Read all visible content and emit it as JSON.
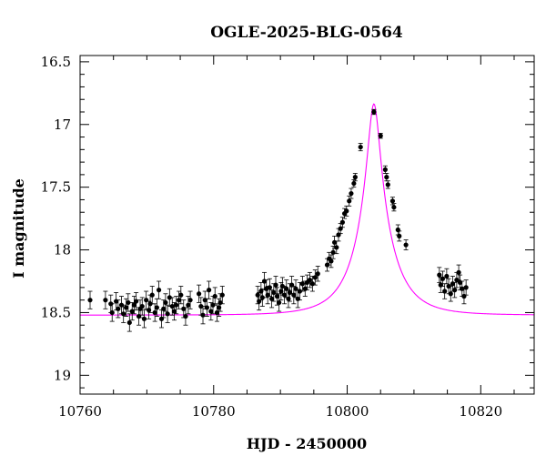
{
  "chart_data": {
    "type": "scatter",
    "title": "OGLE-2025-BLG-0564",
    "xlabel": "HJD - 2450000",
    "ylabel": "I magnitude",
    "xlim": [
      10760,
      10828
    ],
    "ylim": [
      16.45,
      19.15
    ],
    "y_inverted": true,
    "x_ticks": [
      10760,
      10780,
      10800,
      10820
    ],
    "y_ticks": [
      16.5,
      17,
      17.5,
      18,
      18.5,
      19
    ],
    "x_tick_labels": [
      "10760",
      "10780",
      "10800",
      "10820"
    ],
    "y_tick_labels": [
      "16.5",
      "17",
      "17.5",
      "18",
      "18.5",
      "19"
    ],
    "grid": false,
    "colors": {
      "points": "#000000",
      "model": "#ff00ff",
      "axes": "#000000"
    },
    "series": [
      {
        "type": "scatter",
        "points": [
          [
            10761.5,
            18.4,
            0.07
          ],
          [
            10763.8,
            18.4,
            0.07
          ],
          [
            10764.6,
            18.43,
            0.07
          ],
          [
            10764.8,
            18.5,
            0.07
          ],
          [
            10765.4,
            18.41,
            0.07
          ],
          [
            10765.7,
            18.47,
            0.07
          ],
          [
            10766.2,
            18.44,
            0.07
          ],
          [
            10766.5,
            18.51,
            0.07
          ],
          [
            10766.9,
            18.46,
            0.07
          ],
          [
            10767.2,
            18.42,
            0.07
          ],
          [
            10767.4,
            18.58,
            0.07
          ],
          [
            10767.8,
            18.49,
            0.07
          ],
          [
            10768.1,
            18.44,
            0.07
          ],
          [
            10768.4,
            18.41,
            0.07
          ],
          [
            10768.8,
            18.53,
            0.07
          ],
          [
            10769.0,
            18.47,
            0.07
          ],
          [
            10769.3,
            18.45,
            0.07
          ],
          [
            10769.6,
            18.55,
            0.07
          ],
          [
            10769.9,
            18.4,
            0.07
          ],
          [
            10770.3,
            18.48,
            0.07
          ],
          [
            10770.5,
            18.43,
            0.07
          ],
          [
            10770.8,
            18.36,
            0.07
          ],
          [
            10771.2,
            18.5,
            0.07
          ],
          [
            10771.5,
            18.46,
            0.07
          ],
          [
            10771.8,
            18.32,
            0.07
          ],
          [
            10772.2,
            18.55,
            0.07
          ],
          [
            10772.5,
            18.47,
            0.07
          ],
          [
            10772.8,
            18.42,
            0.07
          ],
          [
            10773.1,
            18.51,
            0.07
          ],
          [
            10773.4,
            18.38,
            0.07
          ],
          [
            10773.8,
            18.45,
            0.07
          ],
          [
            10774.1,
            18.49,
            0.07
          ],
          [
            10774.4,
            18.44,
            0.07
          ],
          [
            10774.8,
            18.4,
            0.07
          ],
          [
            10775.1,
            18.36,
            0.07
          ],
          [
            10775.5,
            18.47,
            0.07
          ],
          [
            10775.8,
            18.53,
            0.07
          ],
          [
            10776.2,
            18.44,
            0.07
          ],
          [
            10776.5,
            18.4,
            0.07
          ],
          [
            10777.8,
            18.35,
            0.07
          ],
          [
            10778.1,
            18.45,
            0.07
          ],
          [
            10778.4,
            18.52,
            0.07
          ],
          [
            10778.7,
            18.4,
            0.07
          ],
          [
            10779.0,
            18.46,
            0.07
          ],
          [
            10779.3,
            18.32,
            0.07
          ],
          [
            10779.6,
            18.49,
            0.07
          ],
          [
            10779.9,
            18.44,
            0.07
          ],
          [
            10780.2,
            18.37,
            0.07
          ],
          [
            10780.5,
            18.5,
            0.07
          ],
          [
            10780.8,
            18.46,
            0.07
          ],
          [
            10781.0,
            18.42,
            0.07
          ],
          [
            10781.3,
            18.36,
            0.07
          ],
          [
            10786.6,
            18.36,
            0.07
          ],
          [
            10786.8,
            18.41,
            0.07
          ],
          [
            10787.1,
            18.33,
            0.07
          ],
          [
            10787.3,
            18.38,
            0.07
          ],
          [
            10787.6,
            18.25,
            0.07
          ],
          [
            10787.9,
            18.31,
            0.07
          ],
          [
            10788.1,
            18.36,
            0.07
          ],
          [
            10788.4,
            18.3,
            0.07
          ],
          [
            10788.7,
            18.39,
            0.07
          ],
          [
            10789.0,
            18.34,
            0.07
          ],
          [
            10789.3,
            18.28,
            0.07
          ],
          [
            10789.5,
            18.37,
            0.07
          ],
          [
            10789.8,
            18.42,
            0.07
          ],
          [
            10790.1,
            18.33,
            0.07
          ],
          [
            10790.3,
            18.29,
            0.07
          ],
          [
            10790.6,
            18.36,
            0.07
          ],
          [
            10790.9,
            18.31,
            0.07
          ],
          [
            10791.2,
            18.39,
            0.07
          ],
          [
            10791.4,
            18.34,
            0.07
          ],
          [
            10791.7,
            18.28,
            0.07
          ],
          [
            10792.0,
            18.36,
            0.07
          ],
          [
            10792.3,
            18.31,
            0.07
          ],
          [
            10792.6,
            18.39,
            0.07
          ],
          [
            10792.9,
            18.33,
            0.07
          ],
          [
            10793.3,
            18.27,
            0.06
          ],
          [
            10793.7,
            18.31,
            0.06
          ],
          [
            10794.0,
            18.26,
            0.06
          ],
          [
            10794.4,
            18.24,
            0.06
          ],
          [
            10794.8,
            18.27,
            0.06
          ],
          [
            10795.2,
            18.22,
            0.06
          ],
          [
            10795.6,
            18.19,
            0.06
          ],
          [
            10797.0,
            18.12,
            0.05
          ],
          [
            10797.3,
            18.07,
            0.05
          ],
          [
            10797.6,
            18.09,
            0.05
          ],
          [
            10797.9,
            18.02,
            0.05
          ],
          [
            10798.1,
            17.94,
            0.05
          ],
          [
            10798.4,
            17.98,
            0.05
          ],
          [
            10798.7,
            17.88,
            0.05
          ],
          [
            10799.0,
            17.83,
            0.04
          ],
          [
            10799.3,
            17.78,
            0.04
          ],
          [
            10799.6,
            17.71,
            0.04
          ],
          [
            10799.9,
            17.69,
            0.04
          ],
          [
            10800.3,
            17.61,
            0.04
          ],
          [
            10800.6,
            17.55,
            0.04
          ],
          [
            10801.0,
            17.47,
            0.03
          ],
          [
            10801.2,
            17.42,
            0.03
          ],
          [
            10802.0,
            17.18,
            0.03
          ],
          [
            10804.0,
            16.9,
            0.02
          ],
          [
            10805.0,
            17.09,
            0.02
          ],
          [
            10805.7,
            17.36,
            0.03
          ],
          [
            10805.9,
            17.42,
            0.03
          ],
          [
            10806.1,
            17.48,
            0.03
          ],
          [
            10806.8,
            17.61,
            0.03
          ],
          [
            10807.0,
            17.66,
            0.03
          ],
          [
            10807.6,
            17.84,
            0.04
          ],
          [
            10807.8,
            17.89,
            0.04
          ],
          [
            10808.8,
            17.96,
            0.04
          ],
          [
            10813.8,
            18.2,
            0.06
          ],
          [
            10814.0,
            18.28,
            0.06
          ],
          [
            10814.3,
            18.23,
            0.06
          ],
          [
            10814.6,
            18.33,
            0.06
          ],
          [
            10814.9,
            18.21,
            0.06
          ],
          [
            10815.2,
            18.29,
            0.06
          ],
          [
            10815.5,
            18.35,
            0.06
          ],
          [
            10815.8,
            18.27,
            0.06
          ],
          [
            10816.1,
            18.32,
            0.06
          ],
          [
            10816.4,
            18.24,
            0.06
          ],
          [
            10816.7,
            18.18,
            0.06
          ],
          [
            10816.9,
            18.26,
            0.06
          ],
          [
            10817.2,
            18.31,
            0.06
          ],
          [
            10817.5,
            18.37,
            0.06
          ],
          [
            10817.8,
            18.3,
            0.06
          ]
        ]
      },
      {
        "type": "line",
        "model": {
          "t0": 10804.0,
          "tE": 5.3,
          "u0": 0.16,
          "mbase": 18.52,
          "fs": 0.7
        }
      }
    ]
  }
}
